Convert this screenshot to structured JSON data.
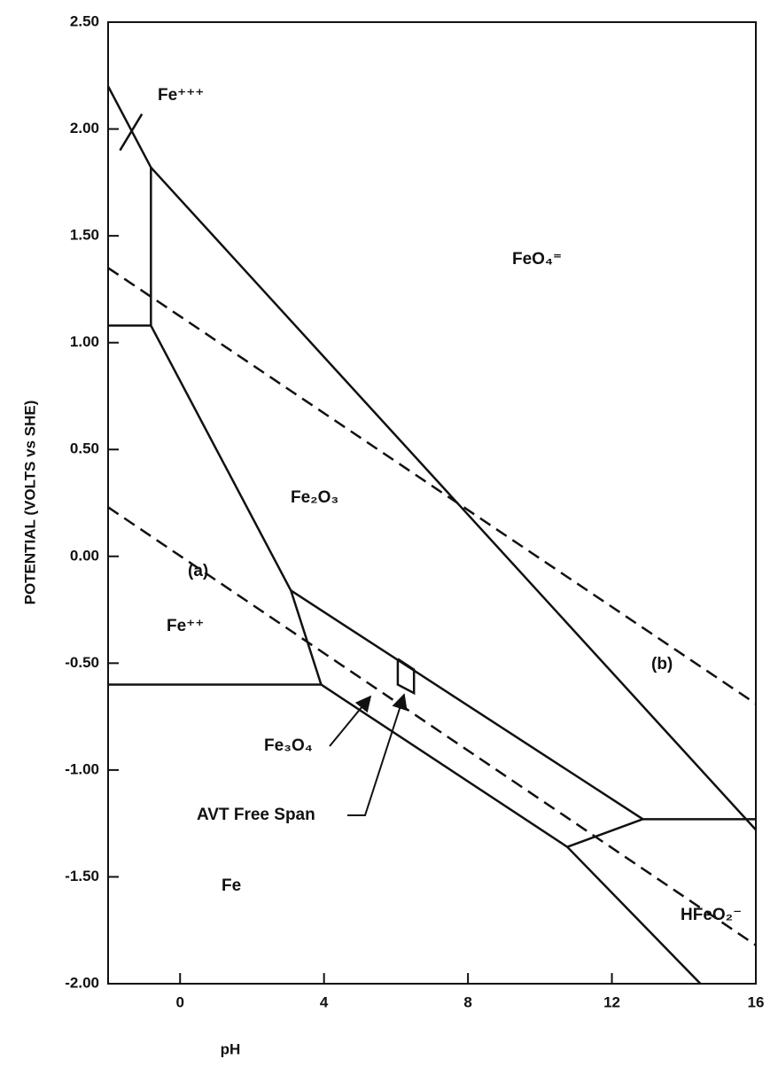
{
  "chart_data": {
    "type": "line",
    "x_label": "pH",
    "y_label": "POTENTIAL (VOLTS vs SHE)",
    "xlim": [
      -2,
      16
    ],
    "xticks": [
      0,
      4,
      8,
      12,
      16
    ],
    "ylim": [
      -2,
      2.5
    ],
    "yticks": [
      {
        "value": 2.5,
        "label": "2.50"
      },
      {
        "value": 2,
        "label": "2.00"
      },
      {
        "value": 1.5,
        "label": "1.50"
      },
      {
        "value": 1,
        "label": "1.00"
      },
      {
        "value": 0.5,
        "label": "0.50"
      },
      {
        "value": 0,
        "label": "0.00"
      },
      {
        "value": -0.5,
        "label": "-0.50"
      },
      {
        "value": -1,
        "label": "-1.00"
      },
      {
        "value": -1.5,
        "label": "-1.50"
      },
      {
        "value": -2,
        "label": "-2.00"
      }
    ],
    "series": [
      {
        "color": "#111",
        "dashed": false,
        "x": [
          -2,
          -0.81,
          16
        ],
        "values": [
          2.2,
          1.82,
          -1.28
        ]
      },
      {
        "color": "#111",
        "dashed": false,
        "x": [
          -1.67,
          -1.06
        ],
        "values": [
          1.9,
          2.07
        ]
      },
      {
        "color": "#111",
        "dashed": false,
        "x": [
          -0.81,
          -0.81
        ],
        "values": [
          1.82,
          1.08
        ]
      },
      {
        "color": "#111",
        "dashed": false,
        "x": [
          -2,
          -0.81,
          3.08,
          3.92
        ],
        "values": [
          1.08,
          1.08,
          -0.16,
          -0.6
        ]
      },
      {
        "color": "#111",
        "dashed": false,
        "x": [
          -2,
          3.92
        ],
        "values": [
          -0.6,
          -0.6
        ]
      },
      {
        "color": "#111",
        "dashed": false,
        "x": [
          3.08,
          12.86,
          16
        ],
        "values": [
          -0.16,
          -1.23,
          -1.23
        ]
      },
      {
        "color": "#111",
        "dashed": false,
        "x": [
          3.92,
          10.76,
          14.46
        ],
        "values": [
          -0.6,
          -1.36,
          -2
        ]
      },
      {
        "color": "#111",
        "dashed": false,
        "x": [
          10.76,
          12.86
        ],
        "values": [
          -1.36,
          -1.23
        ]
      },
      {
        "color": "#111",
        "dashed": true,
        "x": [
          -2,
          16
        ],
        "values": [
          0.23,
          -1.82
        ]
      },
      {
        "color": "#111",
        "dashed": true,
        "x": [
          -2,
          16
        ],
        "values": [
          1.35,
          -0.69
        ]
      },
      {
        "color": "#111",
        "dashed": false,
        "x": [
          6.05,
          6.5,
          6.5,
          6.05,
          6.05
        ],
        "values": [
          -0.48,
          -0.53,
          -0.64,
          -0.6,
          -0.48
        ]
      }
    ],
    "annotations": [
      "Fe⁺⁺⁺",
      "FeO₄⁼",
      "Fe₂O₃",
      "(a)",
      "Fe⁺⁺",
      "(b)",
      "Fe₃O₄",
      "AVT Free Span",
      "Fe",
      "HFeO₂⁻"
    ]
  }
}
